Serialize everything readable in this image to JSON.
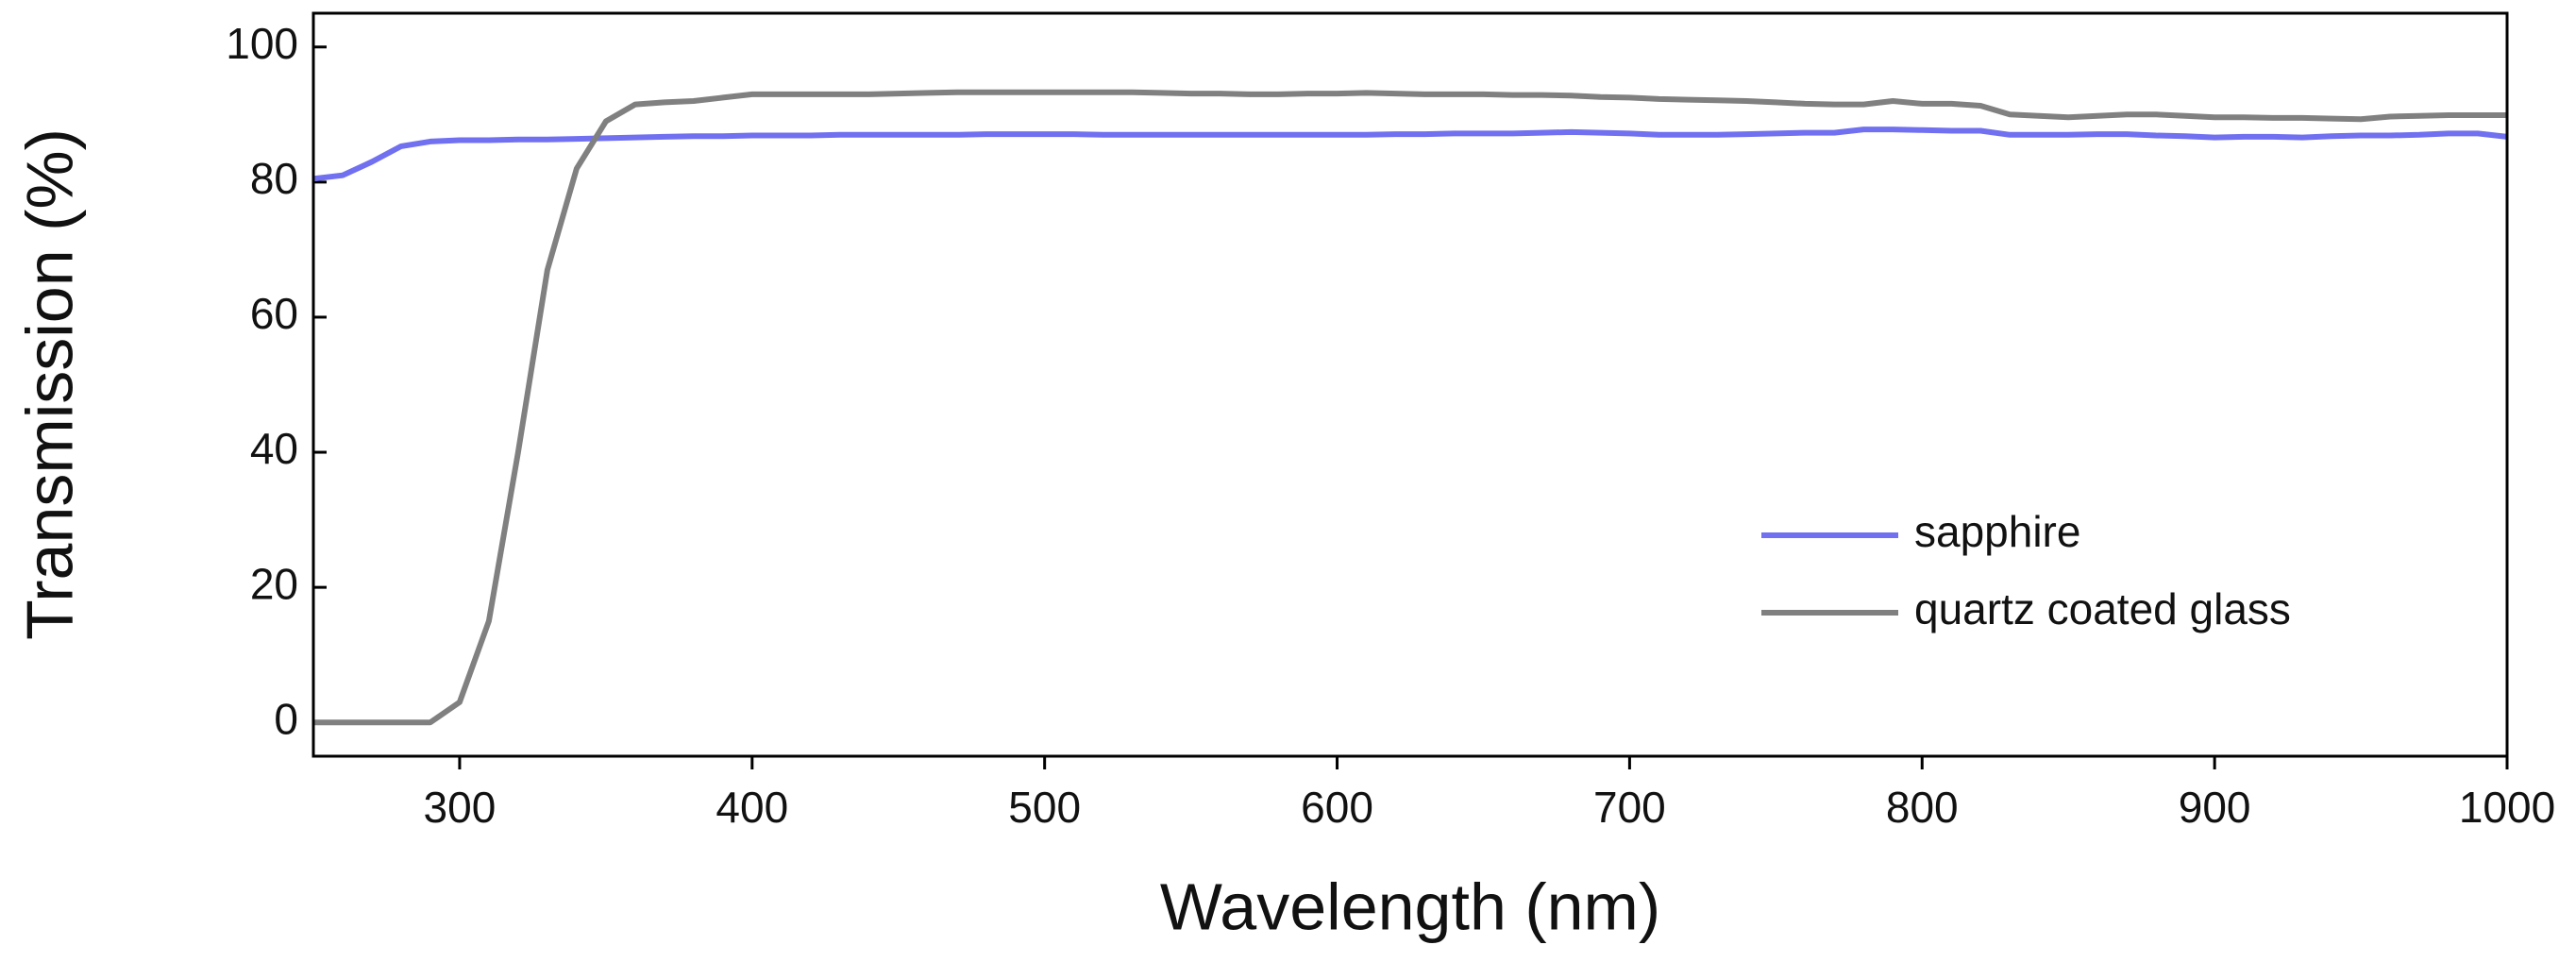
{
  "chart_data": {
    "type": "line",
    "x_label": "Wavelength (nm)",
    "y_label": "Transmission (%)",
    "xlim": [
      250,
      1000
    ],
    "ylim": [
      -5,
      105
    ],
    "xticks": [
      300,
      400,
      500,
      600,
      700,
      800,
      900,
      1000
    ],
    "yticks": [
      0,
      20,
      40,
      60,
      80,
      100
    ],
    "legend": "lower right",
    "grid": false,
    "x": [
      250,
      260,
      270,
      280,
      290,
      300,
      310,
      320,
      330,
      340,
      350,
      360,
      370,
      380,
      390,
      400,
      410,
      420,
      430,
      440,
      450,
      460,
      470,
      480,
      490,
      500,
      510,
      520,
      530,
      540,
      550,
      560,
      570,
      580,
      590,
      600,
      610,
      620,
      630,
      640,
      650,
      660,
      670,
      680,
      690,
      700,
      710,
      720,
      730,
      740,
      750,
      760,
      770,
      780,
      790,
      800,
      810,
      820,
      830,
      840,
      850,
      860,
      870,
      880,
      890,
      900,
      910,
      920,
      930,
      940,
      950,
      960,
      970,
      980,
      990,
      1000
    ],
    "series": [
      {
        "name": "sapphire",
        "color": "#7070f0",
        "values": [
          80.5,
          81,
          83,
          85.3,
          86,
          86.2,
          86.2,
          86.3,
          86.3,
          86.4,
          86.5,
          86.6,
          86.7,
          86.8,
          86.8,
          86.9,
          86.9,
          86.9,
          87,
          87,
          87,
          87,
          87,
          87.1,
          87.1,
          87.1,
          87.1,
          87,
          87,
          87,
          87,
          87,
          87,
          87,
          87,
          87,
          87,
          87.1,
          87.1,
          87.2,
          87.2,
          87.2,
          87.3,
          87.4,
          87.3,
          87.2,
          87,
          87,
          87,
          87.1,
          87.2,
          87.3,
          87.3,
          87.8,
          87.8,
          87.7,
          87.6,
          87.6,
          87,
          87,
          87,
          87.1,
          87.1,
          86.9,
          86.8,
          86.6,
          86.7,
          86.7,
          86.6,
          86.8,
          86.9,
          86.9,
          87,
          87.2,
          87.2,
          86.7
        ]
      },
      {
        "name": "quartz coated glass",
        "color": "#808080",
        "values": [
          0,
          0,
          0,
          0,
          0,
          3,
          15,
          40,
          67,
          82,
          89,
          91.5,
          91.8,
          92,
          92.5,
          93,
          93,
          93,
          93,
          93,
          93.1,
          93.2,
          93.3,
          93.3,
          93.3,
          93.3,
          93.3,
          93.3,
          93.3,
          93.2,
          93.1,
          93.1,
          93,
          93,
          93.1,
          93.1,
          93.2,
          93.1,
          93,
          93,
          93,
          92.9,
          92.9,
          92.8,
          92.6,
          92.5,
          92.3,
          92.2,
          92.1,
          92,
          91.8,
          91.6,
          91.5,
          91.5,
          92,
          91.6,
          91.6,
          91.3,
          90,
          89.8,
          89.6,
          89.8,
          90,
          90,
          89.8,
          89.6,
          89.6,
          89.5,
          89.5,
          89.4,
          89.3,
          89.7,
          89.8,
          89.9,
          89.9,
          89.9
        ]
      }
    ]
  }
}
